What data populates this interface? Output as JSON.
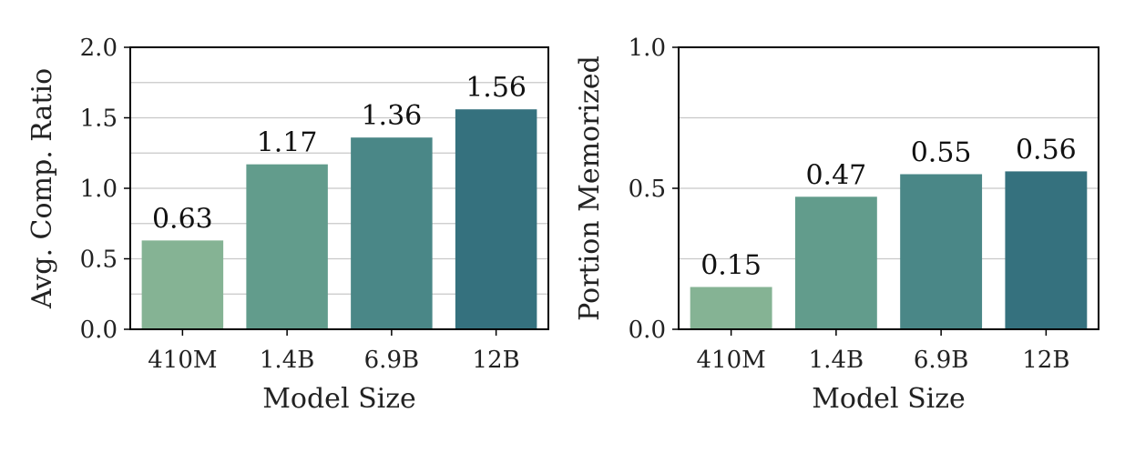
{
  "chart_data": [
    {
      "type": "bar",
      "title": "",
      "xlabel": "Model Size",
      "ylabel": "Avg. Comp. Ratio",
      "categories": [
        "410M",
        "1.4B",
        "6.9B",
        "12B"
      ],
      "values": [
        0.63,
        1.17,
        1.36,
        1.56
      ],
      "value_labels": [
        "0.63",
        "1.17",
        "1.36",
        "1.56"
      ],
      "ylim": [
        0,
        2.0
      ],
      "yticks": [
        0.0,
        0.5,
        1.0,
        1.5,
        2.0
      ],
      "ytick_labels": [
        "0.0",
        "0.5",
        "1.0",
        "1.5",
        "2.0"
      ],
      "grid_lines": [
        0.25,
        0.5,
        0.75,
        1.0,
        1.25,
        1.5,
        1.75
      ],
      "grid": true,
      "bar_colors": [
        "#85b394",
        "#629c8c",
        "#4a8787",
        "#35717e"
      ]
    },
    {
      "type": "bar",
      "title": "",
      "xlabel": "Model Size",
      "ylabel": "Portion Memorized",
      "categories": [
        "410M",
        "1.4B",
        "6.9B",
        "12B"
      ],
      "values": [
        0.15,
        0.47,
        0.55,
        0.56
      ],
      "value_labels": [
        "0.15",
        "0.47",
        "0.55",
        "0.56"
      ],
      "ylim": [
        0,
        1.0
      ],
      "yticks": [
        0.0,
        0.5,
        1.0
      ],
      "ytick_labels": [
        "0.0",
        "0.5",
        "1.0"
      ],
      "grid_lines": [
        0.25,
        0.5,
        0.75
      ],
      "grid": true,
      "bar_colors": [
        "#85b394",
        "#629c8c",
        "#4a8787",
        "#35717e"
      ]
    }
  ]
}
